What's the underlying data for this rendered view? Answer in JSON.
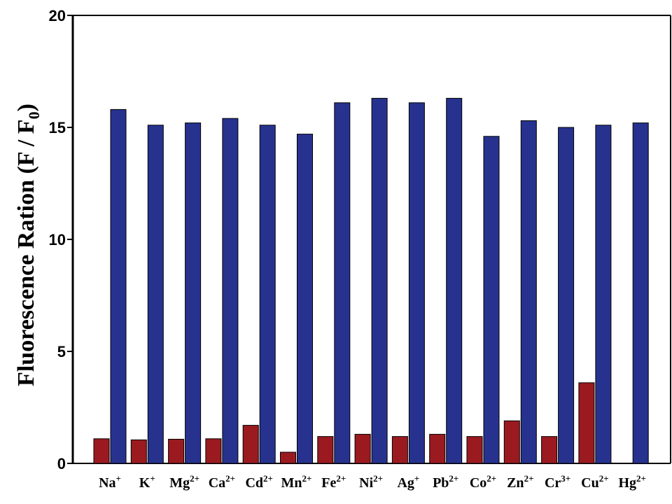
{
  "chart_data": {
    "type": "bar",
    "ylabel_main": "Fluorescence Ration (F / F",
    "ylabel_sub": "0",
    "ylabel_close": ")",
    "ylim": [
      0,
      20
    ],
    "yticks": [
      "0",
      "5",
      "10",
      "15",
      "20"
    ],
    "grid": false,
    "categories": [
      {
        "base": "Na",
        "sup": "+"
      },
      {
        "base": "K",
        "sup": "+"
      },
      {
        "base": "Mg",
        "sup": "2+"
      },
      {
        "base": "Ca",
        "sup": "2+"
      },
      {
        "base": "Cd",
        "sup": "2+"
      },
      {
        "base": "Mn",
        "sup": "2+"
      },
      {
        "base": "Fe",
        "sup": "2+"
      },
      {
        "base": "Ni",
        "sup": "2+"
      },
      {
        "base": "Ag",
        "sup": "+"
      },
      {
        "base": "Pb",
        "sup": "2+"
      },
      {
        "base": "Co",
        "sup": "2+"
      },
      {
        "base": "Zn",
        "sup": "2+"
      },
      {
        "base": "Cr",
        "sup": "3+"
      },
      {
        "base": "Cu",
        "sup": "2+"
      },
      {
        "base": "Hg",
        "sup": "2+"
      }
    ],
    "series": [
      {
        "color": "#9b1a1f",
        "values": [
          1.1,
          1.05,
          1.08,
          1.1,
          1.7,
          0.5,
          1.2,
          1.3,
          1.2,
          1.3,
          1.2,
          1.9,
          1.2,
          3.6,
          0.0
        ]
      },
      {
        "color": "#27328f",
        "values": [
          15.8,
          15.1,
          15.2,
          15.4,
          15.1,
          14.7,
          16.1,
          16.3,
          16.1,
          16.3,
          14.6,
          15.3,
          15.0,
          15.1,
          15.2
        ]
      }
    ]
  }
}
